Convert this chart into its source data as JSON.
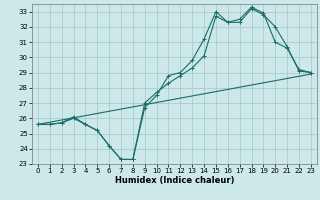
{
  "xlabel": "Humidex (Indice chaleur)",
  "background_color": "#cce8e8",
  "grid_color": "#aacccc",
  "line_color": "#1a6b6b",
  "xlim": [
    -0.5,
    23.5
  ],
  "ylim": [
    23,
    33.5
  ],
  "yticks": [
    23,
    24,
    25,
    26,
    27,
    28,
    29,
    30,
    31,
    32,
    33
  ],
  "xticks": [
    0,
    1,
    2,
    3,
    4,
    5,
    6,
    7,
    8,
    9,
    10,
    11,
    12,
    13,
    14,
    15,
    16,
    17,
    18,
    19,
    20,
    21,
    22,
    23
  ],
  "line1_x": [
    0,
    1,
    2,
    3,
    4,
    5,
    6,
    7,
    8,
    9,
    10,
    11,
    12,
    13,
    14,
    15,
    16,
    17,
    18,
    19,
    20,
    21,
    22,
    23
  ],
  "line1_y": [
    25.6,
    25.6,
    25.7,
    26.0,
    25.6,
    25.2,
    24.2,
    23.3,
    23.3,
    26.7,
    27.5,
    28.8,
    29.0,
    29.8,
    31.2,
    33.0,
    32.3,
    32.3,
    33.2,
    32.8,
    32.0,
    30.7,
    29.1,
    29.0
  ],
  "line2_x": [
    0,
    1,
    2,
    3,
    4,
    5,
    6,
    7,
    8,
    9,
    10,
    11,
    12,
    13,
    14,
    15,
    16,
    17,
    18,
    19,
    20,
    21,
    22,
    23
  ],
  "line2_y": [
    25.6,
    25.6,
    25.7,
    26.1,
    25.6,
    25.2,
    24.2,
    23.3,
    23.3,
    27.0,
    27.7,
    28.3,
    28.8,
    29.3,
    30.1,
    32.7,
    32.3,
    32.5,
    33.3,
    32.9,
    31.0,
    30.6,
    29.2,
    29.0
  ],
  "line3_x": [
    0,
    23
  ],
  "line3_y": [
    25.6,
    28.9
  ]
}
